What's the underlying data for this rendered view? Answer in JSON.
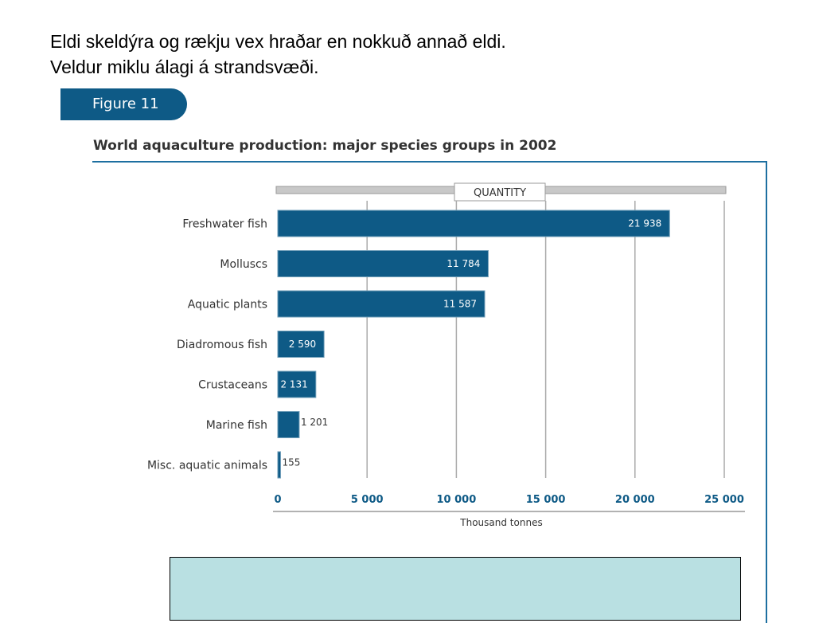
{
  "intro": {
    "line1": "Eldi skeldýra og rækju vex hraðar en nokkuð annað eldi.",
    "line2": "Veldur miklu álagi á strandsvæði."
  },
  "figure_label": "Figure 11",
  "colors": {
    "bar": "#0e5a86",
    "accent": "#1d6fa0",
    "footer_box": "#b9e0e2"
  },
  "chart_data": {
    "type": "bar",
    "orientation": "horizontal",
    "title": "World aquaculture production: major species groups in 2002",
    "header_label": "QUANTITY",
    "categories": [
      "Freshwater fish",
      "Molluscs",
      "Aquatic plants",
      "Diadromous fish",
      "Crustaceans",
      "Marine fish",
      "Misc. aquatic animals"
    ],
    "values": [
      21938,
      11784,
      11587,
      2590,
      2131,
      1201,
      155
    ],
    "value_labels": [
      "21 938",
      "11 784",
      "11 587",
      "2 590",
      "2 131",
      "1 201",
      "155"
    ],
    "xlabel": "Thousand tonnes",
    "ylabel": "",
    "xlim": [
      0,
      25000
    ],
    "xticks": [
      0,
      5000,
      10000,
      15000,
      20000,
      25000
    ],
    "xtick_labels": [
      "0",
      "5 000",
      "10 000",
      "15 000",
      "20 000",
      "25 000"
    ],
    "grid": true
  }
}
